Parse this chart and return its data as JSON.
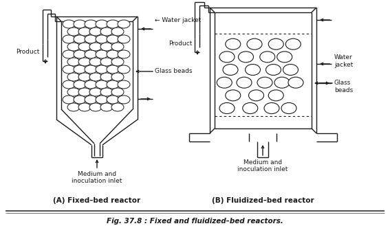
{
  "title": "Fig. 37.8 : Fixed and fluidized–bed reactors.",
  "label_A": "(A) Fixed–bed reactor",
  "label_B": "(B) Fluidized–bed reactor",
  "bg_color": "#ffffff",
  "line_color": "#1a1a1a",
  "text_color": "#1a1a1a",
  "font_size": 6.5,
  "title_font_size": 7.5
}
